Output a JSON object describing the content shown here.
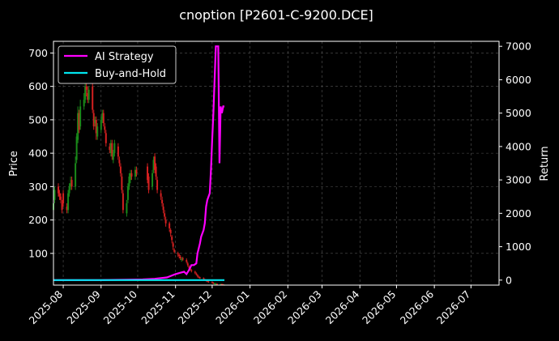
{
  "chart_data": {
    "type": "line",
    "title": "cnoption [P2601-C-9200.DCE]",
    "ylabel": "Price",
    "y2label": "Return",
    "grid": true,
    "legend_position": "top-left",
    "xlim": [
      "2025-07-24",
      "2026-07-24"
    ],
    "ylim": [
      5,
      735
    ],
    "y2lim": [
      -150,
      7150
    ],
    "x_ticks": [
      "2025-08",
      "2025-09",
      "2025-10",
      "2025-11",
      "2025-12",
      "2026-01",
      "2026-02",
      "2026-03",
      "2026-04",
      "2026-05",
      "2026-06",
      "2026-07"
    ],
    "x_tick_dates": [
      "2025-08-01",
      "2025-09-01",
      "2025-10-01",
      "2025-11-01",
      "2025-12-01",
      "2026-01-01",
      "2026-02-01",
      "2026-03-01",
      "2026-04-01",
      "2026-05-01",
      "2026-06-01",
      "2026-07-01"
    ],
    "y_ticks": [
      100,
      200,
      300,
      400,
      500,
      600,
      700
    ],
    "y2_ticks": [
      0,
      1000,
      2000,
      3000,
      4000,
      5000,
      6000,
      7000
    ],
    "colors": {
      "up": "#1a8a1a",
      "down": "#d42020",
      "ai": "#ff00ff",
      "bh": "#00e5ee"
    },
    "series": [
      {
        "name": "AI Strategy",
        "axis": "right",
        "color": "#ff00ff",
        "x": [
          "2025-07-24",
          "2025-08-10",
          "2025-09-01",
          "2025-09-20",
          "2025-10-05",
          "2025-10-15",
          "2025-10-25",
          "2025-11-01",
          "2025-11-05",
          "2025-11-08",
          "2025-11-10",
          "2025-11-12",
          "2025-11-14",
          "2025-11-16",
          "2025-11-18",
          "2025-11-19",
          "2025-11-21",
          "2025-11-22",
          "2025-11-24",
          "2025-11-25",
          "2025-11-26",
          "2025-11-27",
          "2025-11-28",
          "2025-11-29",
          "2025-11-30",
          "2025-12-01",
          "2025-12-02",
          "2025-12-03",
          "2025-12-04",
          "2025-12-05",
          "2025-12-06",
          "2025-12-07",
          "2025-12-08",
          "2025-12-09",
          "2025-12-10",
          "2025-12-11"
        ],
        "values": [
          0,
          0,
          0,
          10,
          20,
          40,
          80,
          180,
          220,
          250,
          180,
          300,
          450,
          450,
          500,
          800,
          1100,
          1300,
          1500,
          1700,
          2200,
          2400,
          2500,
          2600,
          3300,
          4200,
          5000,
          6000,
          7000,
          7000,
          7000,
          3500,
          5200,
          5000,
          5200,
          5200
        ]
      },
      {
        "name": "Buy-and-Hold",
        "axis": "right",
        "color": "#00e5ee",
        "x": [
          "2025-07-24",
          "2025-12-11"
        ],
        "values": [
          0,
          0
        ]
      }
    ],
    "candles": {
      "x": [
        "2025-07-24",
        "2025-07-25",
        "2025-07-28",
        "2025-07-29",
        "2025-07-30",
        "2025-07-31",
        "2025-08-01",
        "2025-08-04",
        "2025-08-05",
        "2025-08-06",
        "2025-08-07",
        "2025-08-08",
        "2025-08-11",
        "2025-08-12",
        "2025-08-13",
        "2025-08-14",
        "2025-08-15",
        "2025-08-18",
        "2025-08-19",
        "2025-08-20",
        "2025-08-21",
        "2025-08-22",
        "2025-08-25",
        "2025-08-26",
        "2025-08-27",
        "2025-08-28",
        "2025-08-29",
        "2025-09-01",
        "2025-09-02",
        "2025-09-03",
        "2025-09-04",
        "2025-09-05",
        "2025-09-08",
        "2025-09-09",
        "2025-09-10",
        "2025-09-11",
        "2025-09-12",
        "2025-09-15",
        "2025-09-16",
        "2025-09-17",
        "2025-09-18",
        "2025-09-19",
        "2025-09-22",
        "2025-09-23",
        "2025-09-24",
        "2025-09-25",
        "2025-09-26",
        "2025-09-29",
        "2025-09-30",
        "2025-10-09",
        "2025-10-10",
        "2025-10-13",
        "2025-10-14",
        "2025-10-15",
        "2025-10-16",
        "2025-10-17",
        "2025-10-20",
        "2025-10-21",
        "2025-10-22",
        "2025-10-23",
        "2025-10-24",
        "2025-10-27",
        "2025-10-28",
        "2025-10-29",
        "2025-10-30",
        "2025-10-31",
        "2025-11-03",
        "2025-11-04",
        "2025-11-05",
        "2025-11-06",
        "2025-11-07",
        "2025-11-10",
        "2025-11-11",
        "2025-11-12",
        "2025-11-13",
        "2025-11-14",
        "2025-11-17",
        "2025-11-18",
        "2025-11-19",
        "2025-11-20",
        "2025-11-21",
        "2025-11-24",
        "2025-11-25",
        "2025-11-26",
        "2025-11-27",
        "2025-11-28",
        "2025-12-01",
        "2025-12-02",
        "2025-12-03",
        "2025-12-04",
        "2025-12-05",
        "2025-12-08",
        "2025-12-09",
        "2025-12-10",
        "2025-12-11"
      ],
      "open": [
        230,
        260,
        300,
        280,
        270,
        250,
        280,
        240,
        230,
        280,
        300,
        320,
        300,
        380,
        440,
        520,
        480,
        540,
        560,
        600,
        580,
        560,
        600,
        520,
        490,
        500,
        450,
        470,
        500,
        520,
        480,
        460,
        420,
        400,
        430,
        380,
        400,
        420,
        380,
        360,
        330,
        280,
        220,
        260,
        300,
        320,
        340,
        330,
        350,
        360,
        330,
        300,
        350,
        390,
        360,
        320,
        280,
        260,
        240,
        220,
        200,
        190,
        170,
        150,
        130,
        110,
        100,
        95,
        90,
        80,
        85,
        80,
        70,
        60,
        55,
        50,
        45,
        40,
        35,
        30,
        28,
        26,
        22,
        20,
        18,
        16,
        14,
        12,
        10,
        9,
        9,
        8,
        8,
        7,
        6
      ],
      "close": [
        250,
        290,
        280,
        270,
        260,
        230,
        250,
        230,
        280,
        300,
        310,
        300,
        370,
        450,
        520,
        470,
        540,
        560,
        600,
        590,
        560,
        590,
        530,
        480,
        500,
        460,
        480,
        500,
        520,
        490,
        470,
        430,
        410,
        430,
        390,
        400,
        430,
        390,
        370,
        340,
        290,
        230,
        250,
        300,
        330,
        340,
        330,
        350,
        340,
        320,
        290,
        340,
        380,
        350,
        330,
        290,
        270,
        250,
        230,
        210,
        190,
        175,
        160,
        140,
        120,
        105,
        98,
        92,
        85,
        83,
        82,
        75,
        65,
        58,
        52,
        47,
        42,
        38,
        32,
        29,
        27,
        24,
        21,
        19,
        17,
        15,
        13,
        11,
        10,
        9,
        8,
        8,
        7,
        6,
        6
      ],
      "high": [
        260,
        300,
        310,
        290,
        280,
        260,
        290,
        250,
        290,
        310,
        330,
        330,
        390,
        460,
        540,
        530,
        560,
        580,
        620,
        610,
        600,
        600,
        610,
        530,
        510,
        510,
        490,
        510,
        530,
        530,
        490,
        470,
        430,
        440,
        440,
        410,
        440,
        430,
        390,
        370,
        340,
        290,
        260,
        310,
        340,
        350,
        350,
        360,
        360,
        370,
        340,
        350,
        390,
        400,
        370,
        330,
        290,
        270,
        250,
        230,
        210,
        195,
        175,
        155,
        135,
        115,
        105,
        100,
        95,
        88,
        90,
        85,
        75,
        65,
        58,
        53,
        48,
        43,
        38,
        33,
        30,
        28,
        24,
        22,
        20,
        18,
        16,
        14,
        12,
        11,
        10,
        9,
        9,
        8,
        7
      ],
      "low": [
        220,
        250,
        270,
        260,
        250,
        220,
        240,
        220,
        220,
        270,
        290,
        290,
        290,
        370,
        430,
        460,
        470,
        530,
        550,
        570,
        550,
        550,
        520,
        470,
        480,
        440,
        440,
        460,
        490,
        480,
        460,
        420,
        400,
        390,
        380,
        370,
        390,
        380,
        360,
        330,
        280,
        220,
        210,
        250,
        290,
        310,
        320,
        320,
        330,
        310,
        280,
        290,
        340,
        340,
        320,
        280,
        260,
        240,
        220,
        200,
        180,
        165,
        150,
        130,
        110,
        100,
        90,
        85,
        80,
        75,
        78,
        70,
        60,
        52,
        48,
        43,
        38,
        34,
        28,
        26,
        24,
        20,
        18,
        16,
        14,
        12,
        10,
        8,
        7,
        6,
        6,
        6,
        5,
        5,
        5
      ]
    }
  }
}
